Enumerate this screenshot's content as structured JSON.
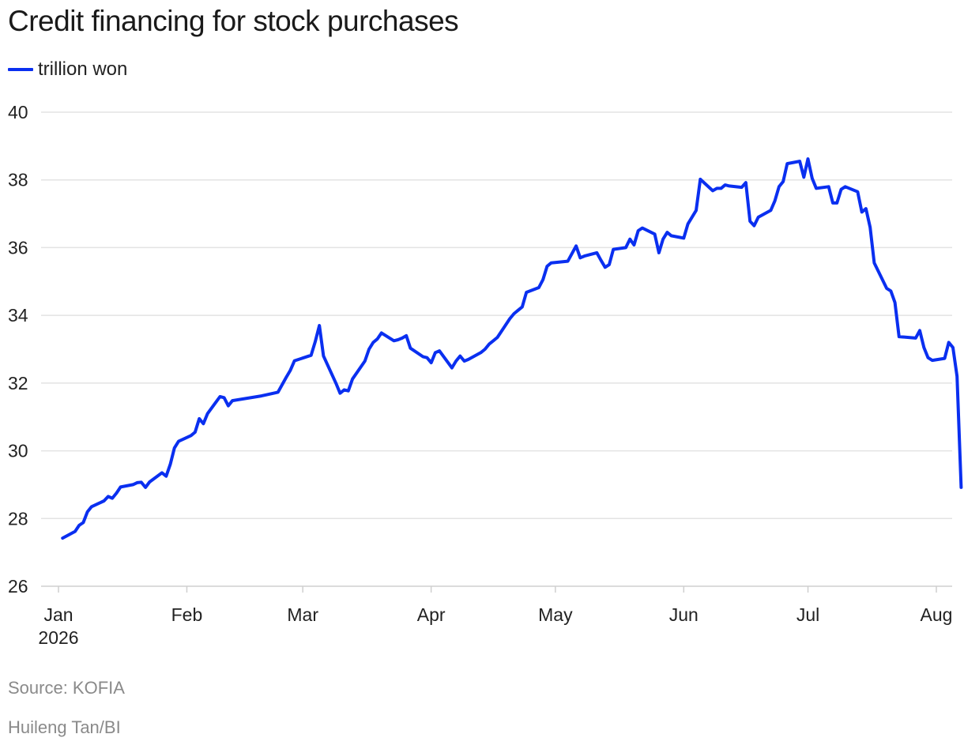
{
  "title": "Credit financing for stock purchases",
  "source": "Source: KOFIA",
  "credit": "Huileng Tan/BI",
  "colors": {
    "line": "#0a2ff0",
    "grid": "#e3e3e3",
    "axis_text": "#222222",
    "note_text": "#8a8a8a"
  },
  "chart_data": {
    "type": "line",
    "title": "Credit financing for stock purchases",
    "ylim": [
      26,
      40
    ],
    "y_ticks": [
      "26",
      "28",
      "30",
      "32",
      "34",
      "36",
      "38",
      "40"
    ],
    "x_ticks": [
      {
        "label": "Jan",
        "sublabel": "2026",
        "date": "2026-01-01"
      },
      {
        "label": "Feb",
        "sublabel": "",
        "date": "2026-02-01"
      },
      {
        "label": "Mar",
        "sublabel": "",
        "date": "2026-03-01"
      },
      {
        "label": "Apr",
        "sublabel": "",
        "date": "2026-04-01"
      },
      {
        "label": "May",
        "sublabel": "",
        "date": "2026-05-01"
      },
      {
        "label": "Jun",
        "sublabel": "",
        "date": "2026-06-01"
      },
      {
        "label": "Jul",
        "sublabel": "",
        "date": "2026-07-01"
      },
      {
        "label": "Aug",
        "sublabel": "",
        "date": "2026-08-01"
      }
    ],
    "grid": true,
    "legend_position": "top-left",
    "series": [
      {
        "name": "trillion won",
        "points": [
          [
            "2026-01-02",
            27.42
          ],
          [
            "2026-01-05",
            27.62
          ],
          [
            "2026-01-06",
            27.8
          ],
          [
            "2026-01-07",
            27.88
          ],
          [
            "2026-01-08",
            28.2
          ],
          [
            "2026-01-09",
            28.35
          ],
          [
            "2026-01-12",
            28.52
          ],
          [
            "2026-01-13",
            28.65
          ],
          [
            "2026-01-14",
            28.6
          ],
          [
            "2026-01-15",
            28.75
          ],
          [
            "2026-01-16",
            28.93
          ],
          [
            "2026-01-19",
            29.0
          ],
          [
            "2026-01-20",
            29.06
          ],
          [
            "2026-01-21",
            29.07
          ],
          [
            "2026-01-22",
            28.92
          ],
          [
            "2026-01-23",
            29.08
          ],
          [
            "2026-01-26",
            29.35
          ],
          [
            "2026-01-27",
            29.25
          ],
          [
            "2026-01-28",
            29.6
          ],
          [
            "2026-01-29",
            30.08
          ],
          [
            "2026-01-30",
            30.28
          ],
          [
            "2026-02-02",
            30.45
          ],
          [
            "2026-02-03",
            30.55
          ],
          [
            "2026-02-04",
            30.95
          ],
          [
            "2026-02-05",
            30.8
          ],
          [
            "2026-02-06",
            31.1
          ],
          [
            "2026-02-09",
            31.6
          ],
          [
            "2026-02-10",
            31.57
          ],
          [
            "2026-02-11",
            31.33
          ],
          [
            "2026-02-12",
            31.48
          ],
          [
            "2026-02-19",
            31.62
          ],
          [
            "2026-02-20",
            31.65
          ],
          [
            "2026-02-23",
            31.73
          ],
          [
            "2026-02-24",
            31.95
          ],
          [
            "2026-02-25",
            32.17
          ],
          [
            "2026-02-26",
            32.38
          ],
          [
            "2026-02-27",
            32.66
          ],
          [
            "2026-03-03",
            32.82
          ],
          [
            "2026-03-04",
            33.22
          ],
          [
            "2026-03-05",
            33.7
          ],
          [
            "2026-03-06",
            32.8
          ],
          [
            "2026-03-09",
            32.0
          ],
          [
            "2026-03-10",
            31.7
          ],
          [
            "2026-03-11",
            31.8
          ],
          [
            "2026-03-12",
            31.77
          ],
          [
            "2026-03-13",
            32.12
          ],
          [
            "2026-03-16",
            32.65
          ],
          [
            "2026-03-17",
            33.0
          ],
          [
            "2026-03-18",
            33.2
          ],
          [
            "2026-03-19",
            33.3
          ],
          [
            "2026-03-20",
            33.48
          ],
          [
            "2026-03-23",
            33.25
          ],
          [
            "2026-03-24",
            33.28
          ],
          [
            "2026-03-25",
            33.33
          ],
          [
            "2026-03-26",
            33.4
          ],
          [
            "2026-03-27",
            33.03
          ],
          [
            "2026-03-30",
            32.78
          ],
          [
            "2026-03-31",
            32.75
          ],
          [
            "2026-04-01",
            32.6
          ],
          [
            "2026-04-02",
            32.9
          ],
          [
            "2026-04-03",
            32.95
          ],
          [
            "2026-04-06",
            32.45
          ],
          [
            "2026-04-07",
            32.65
          ],
          [
            "2026-04-08",
            32.8
          ],
          [
            "2026-04-09",
            32.65
          ],
          [
            "2026-04-10",
            32.7
          ],
          [
            "2026-04-13",
            32.9
          ],
          [
            "2026-04-14",
            33.0
          ],
          [
            "2026-04-15",
            33.15
          ],
          [
            "2026-04-16",
            33.25
          ],
          [
            "2026-04-17",
            33.35
          ],
          [
            "2026-04-20",
            33.9
          ],
          [
            "2026-04-21",
            34.05
          ],
          [
            "2026-04-22",
            34.15
          ],
          [
            "2026-04-23",
            34.25
          ],
          [
            "2026-04-24",
            34.68
          ],
          [
            "2026-04-27",
            34.82
          ],
          [
            "2026-04-28",
            35.05
          ],
          [
            "2026-04-29",
            35.45
          ],
          [
            "2026-04-30",
            35.55
          ],
          [
            "2026-05-04",
            35.6
          ],
          [
            "2026-05-06",
            36.05
          ],
          [
            "2026-05-07",
            35.7
          ],
          [
            "2026-05-08",
            35.75
          ],
          [
            "2026-05-11",
            35.85
          ],
          [
            "2026-05-12",
            35.63
          ],
          [
            "2026-05-13",
            35.42
          ],
          [
            "2026-05-14",
            35.5
          ],
          [
            "2026-05-15",
            35.95
          ],
          [
            "2026-05-18",
            36.0
          ],
          [
            "2026-05-19",
            36.25
          ],
          [
            "2026-05-20",
            36.08
          ],
          [
            "2026-05-21",
            36.5
          ],
          [
            "2026-05-22",
            36.58
          ],
          [
            "2026-05-25",
            36.4
          ],
          [
            "2026-05-26",
            35.85
          ],
          [
            "2026-05-27",
            36.25
          ],
          [
            "2026-05-28",
            36.45
          ],
          [
            "2026-05-29",
            36.35
          ],
          [
            "2026-06-01",
            36.28
          ],
          [
            "2026-06-02",
            36.7
          ],
          [
            "2026-06-04",
            37.1
          ],
          [
            "2026-06-05",
            38.02
          ],
          [
            "2026-06-08",
            37.68
          ],
          [
            "2026-06-09",
            37.75
          ],
          [
            "2026-06-10",
            37.75
          ],
          [
            "2026-06-11",
            37.85
          ],
          [
            "2026-06-12",
            37.82
          ],
          [
            "2026-06-15",
            37.78
          ],
          [
            "2026-06-16",
            37.92
          ],
          [
            "2026-06-17",
            36.78
          ],
          [
            "2026-06-18",
            36.65
          ],
          [
            "2026-06-19",
            36.9
          ],
          [
            "2026-06-22",
            37.1
          ],
          [
            "2026-06-23",
            37.38
          ],
          [
            "2026-06-24",
            37.8
          ],
          [
            "2026-06-25",
            37.95
          ],
          [
            "2026-06-26",
            38.48
          ],
          [
            "2026-06-29",
            38.55
          ],
          [
            "2026-06-30",
            38.08
          ],
          [
            "2026-07-01",
            38.62
          ],
          [
            "2026-07-02",
            38.05
          ],
          [
            "2026-07-03",
            37.75
          ],
          [
            "2026-07-06",
            37.8
          ],
          [
            "2026-07-07",
            37.32
          ],
          [
            "2026-07-08",
            37.32
          ],
          [
            "2026-07-09",
            37.72
          ],
          [
            "2026-07-10",
            37.8
          ],
          [
            "2026-07-13",
            37.65
          ],
          [
            "2026-07-14",
            37.05
          ],
          [
            "2026-07-15",
            37.15
          ],
          [
            "2026-07-16",
            36.6
          ],
          [
            "2026-07-17",
            35.55
          ],
          [
            "2026-07-20",
            34.8
          ],
          [
            "2026-07-21",
            34.72
          ],
          [
            "2026-07-22",
            34.38
          ],
          [
            "2026-07-23",
            33.37
          ],
          [
            "2026-07-27",
            33.33
          ],
          [
            "2026-07-28",
            33.55
          ],
          [
            "2026-07-29",
            33.05
          ],
          [
            "2026-07-30",
            32.75
          ],
          [
            "2026-07-31",
            32.67
          ],
          [
            "2026-08-03",
            32.73
          ],
          [
            "2026-08-04",
            33.2
          ],
          [
            "2026-08-05",
            33.05
          ],
          [
            "2026-08-06",
            32.2
          ],
          [
            "2026-08-07",
            28.92
          ]
        ]
      }
    ]
  }
}
